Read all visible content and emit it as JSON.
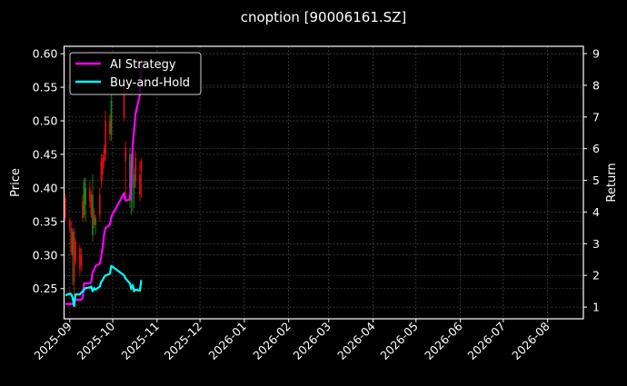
{
  "chart_data": {
    "type": "candlestick+line",
    "title": "cnoption [90006161.SZ]",
    "ylabel": "Price",
    "y2label": "Return",
    "xlim": [
      "2025-08-28",
      "2026-08-26"
    ],
    "ylim": [
      0.205,
      0.611
    ],
    "y2lim": [
      0.63,
      9.23
    ],
    "grid": true,
    "legend_position": "top-left",
    "x_ticks": [
      "2025-09",
      "2025-10",
      "2025-11",
      "2025-12",
      "2026-01",
      "2026-02",
      "2026-03",
      "2026-04",
      "2026-05",
      "2026-06",
      "2026-07",
      "2026-08"
    ],
    "y_ticks": [
      "0.25",
      "0.30",
      "0.35",
      "0.40",
      "0.45",
      "0.50",
      "0.55",
      "0.60"
    ],
    "y2_ticks": [
      "1",
      "2",
      "3",
      "4",
      "5",
      "6",
      "7",
      "8",
      "9"
    ],
    "colors": {
      "up": "#1f8a1f",
      "down": "#e01010",
      "ai": "#ff00ff",
      "bh": "#00ffff",
      "background": "#000000",
      "grid": "#555555"
    },
    "dates": [
      "2025-08-29",
      "2025-09-01",
      "2025-09-02",
      "2025-09-03",
      "2025-09-04",
      "2025-09-05",
      "2025-09-08",
      "2025-09-09",
      "2025-09-10",
      "2025-09-11",
      "2025-09-12",
      "2025-09-15",
      "2025-09-16",
      "2025-09-17",
      "2025-09-18",
      "2025-09-19",
      "2025-09-22",
      "2025-09-23",
      "2025-09-24",
      "2025-09-25",
      "2025-09-26",
      "2025-09-29",
      "2025-09-30",
      "2025-10-09",
      "2025-10-10",
      "2025-10-13",
      "2025-10-14",
      "2025-10-15",
      "2025-10-16",
      "2025-10-17",
      "2025-10-20",
      "2025-10-21"
    ],
    "ohlc": [
      [
        0.385,
        0.392,
        0.35,
        0.355
      ],
      [
        0.352,
        0.355,
        0.335,
        0.34
      ],
      [
        0.34,
        0.35,
        0.3,
        0.305
      ],
      [
        0.3,
        0.34,
        0.255,
        0.335
      ],
      [
        0.335,
        0.34,
        0.24,
        0.26
      ],
      [
        0.32,
        0.325,
        0.285,
        0.29
      ],
      [
        0.31,
        0.315,
        0.27,
        0.28
      ],
      [
        0.3,
        0.31,
        0.275,
        0.285
      ],
      [
        0.38,
        0.39,
        0.35,
        0.355
      ],
      [
        0.36,
        0.415,
        0.355,
        0.41
      ],
      [
        0.375,
        0.415,
        0.35,
        0.4
      ],
      [
        0.4,
        0.41,
        0.37,
        0.38
      ],
      [
        0.39,
        0.395,
        0.355,
        0.36
      ],
      [
        0.33,
        0.42,
        0.32,
        0.39
      ],
      [
        0.36,
        0.37,
        0.34,
        0.345
      ],
      [
        0.345,
        0.36,
        0.33,
        0.355
      ],
      [
        0.39,
        0.4,
        0.35,
        0.36
      ],
      [
        0.44,
        0.45,
        0.4,
        0.41
      ],
      [
        0.445,
        0.45,
        0.41,
        0.42
      ],
      [
        0.46,
        0.465,
        0.43,
        0.44
      ],
      [
        0.5,
        0.515,
        0.44,
        0.45
      ],
      [
        0.5,
        0.51,
        0.47,
        0.48
      ],
      [
        0.48,
        0.54,
        0.47,
        0.53
      ],
      [
        0.56,
        0.565,
        0.5,
        0.505
      ],
      [
        0.46,
        0.47,
        0.38,
        0.44
      ],
      [
        0.4,
        0.46,
        0.37,
        0.45
      ],
      [
        0.38,
        0.45,
        0.36,
        0.44
      ],
      [
        0.43,
        0.47,
        0.365,
        0.45
      ],
      [
        0.4,
        0.43,
        0.37,
        0.42
      ],
      [
        0.445,
        0.455,
        0.4,
        0.41
      ],
      [
        0.42,
        0.44,
        0.38,
        0.39
      ],
      [
        0.44,
        0.445,
        0.385,
        0.425
      ]
    ],
    "series": [
      {
        "name": "AI Strategy",
        "values": [
          1.1,
          1.1,
          1.1,
          1.1,
          1.15,
          1.23,
          1.23,
          1.23,
          1.3,
          1.74,
          1.75,
          1.75,
          1.8,
          2.1,
          2.17,
          2.3,
          2.37,
          2.6,
          2.9,
          3.3,
          3.5,
          3.6,
          3.85,
          4.6,
          4.36,
          4.4,
          5.0,
          6.1,
          6.6,
          7.1,
          7.7,
          8.8
        ]
      },
      {
        "name": "Buy-and-Hold",
        "values": [
          1.37,
          1.43,
          1.4,
          1.3,
          1.03,
          1.4,
          1.4,
          1.45,
          1.5,
          1.55,
          1.6,
          1.62,
          1.65,
          1.5,
          1.6,
          1.55,
          1.65,
          1.8,
          1.85,
          1.95,
          2.0,
          2.05,
          2.3,
          2.0,
          1.9,
          1.75,
          1.57,
          1.7,
          1.5,
          1.55,
          1.52,
          1.85
        ]
      }
    ]
  }
}
